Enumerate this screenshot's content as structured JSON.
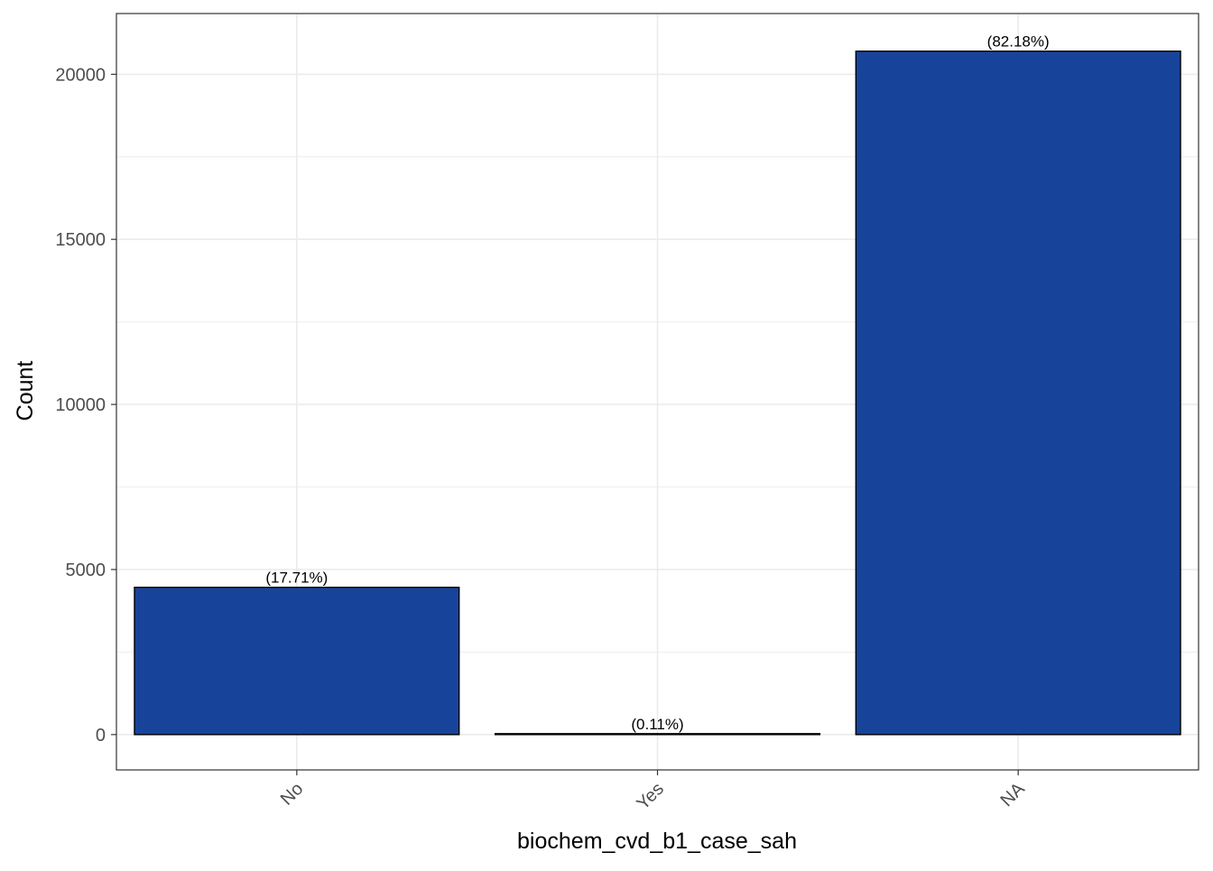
{
  "chart_data": {
    "type": "bar",
    "categories": [
      "No",
      "Yes",
      "NA"
    ],
    "values": [
      4460,
      28,
      20700
    ],
    "percent_labels": [
      "(17.71%)",
      "(0.11%)",
      "(82.18%)"
    ],
    "title": "",
    "xlabel": "biochem_cvd_b1_case_sah",
    "ylabel": "Count",
    "ylim": [
      -1070,
      21840
    ],
    "yticks": [
      0,
      5000,
      10000,
      15000,
      20000
    ],
    "ytick_labels": [
      "0",
      "5000",
      "10000",
      "15000",
      "20000"
    ],
    "grid": true,
    "bar_color": "#17449A",
    "bar_outline": "#000000",
    "grid_color": "#EBEBEB",
    "panel_border": "#333333"
  }
}
